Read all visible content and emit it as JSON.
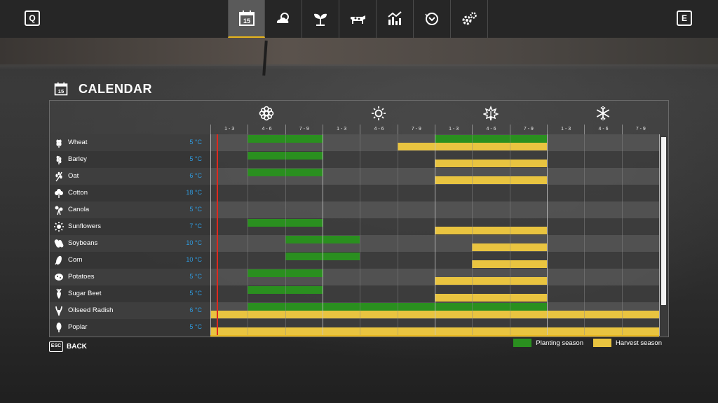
{
  "top_keys": {
    "left": "Q",
    "right": "E"
  },
  "tabs": [
    {
      "icon": "calendar-icon",
      "label": "15",
      "active": true
    },
    {
      "icon": "weather-icon",
      "active": false
    },
    {
      "icon": "seedling-icon",
      "active": false
    },
    {
      "icon": "cow-icon",
      "active": false
    },
    {
      "icon": "statistics-icon",
      "active": false
    },
    {
      "icon": "finances-icon",
      "active": false
    },
    {
      "icon": "settings-icon",
      "active": false
    }
  ],
  "page": {
    "title": "CALENDAR",
    "title_icon_label": "15"
  },
  "seasons": [
    {
      "icon": "spring-flower-icon"
    },
    {
      "icon": "summer-sun-icon"
    },
    {
      "icon": "autumn-leaf-icon"
    },
    {
      "icon": "winter-snowflake-icon"
    }
  ],
  "periods": [
    "1 - 3",
    "4 - 6",
    "7 - 9",
    "1 - 3",
    "4 - 6",
    "7 - 9",
    "1 - 3",
    "4 - 6",
    "7 - 9",
    "1 - 3",
    "4 - 6",
    "7 - 9"
  ],
  "crops": [
    {
      "name": "Wheat",
      "temp": "5 °C",
      "icon": "wheat-icon",
      "planting": [
        [
          2,
          3
        ],
        [
          7,
          9
        ]
      ],
      "harvest": [
        [
          6,
          9
        ]
      ]
    },
    {
      "name": "Barley",
      "temp": "5 °C",
      "icon": "barley-icon",
      "planting": [
        [
          2,
          3
        ]
      ],
      "harvest": [
        [
          7,
          9
        ]
      ]
    },
    {
      "name": "Oat",
      "temp": "6 °C",
      "icon": "oat-icon",
      "planting": [
        [
          2,
          3
        ]
      ],
      "harvest": [
        [
          7,
          9
        ]
      ]
    },
    {
      "name": "Cotton",
      "temp": "18 °C",
      "icon": "cotton-icon",
      "planting": [],
      "harvest": []
    },
    {
      "name": "Canola",
      "temp": "5 °C",
      "icon": "canola-icon",
      "planting": [],
      "harvest": []
    },
    {
      "name": "Sunflowers",
      "temp": "7 °C",
      "icon": "sunflower-icon",
      "planting": [
        [
          2,
          3
        ]
      ],
      "harvest": [
        [
          7,
          9
        ]
      ]
    },
    {
      "name": "Soybeans",
      "temp": "10 °C",
      "icon": "soybean-icon",
      "planting": [
        [
          3,
          4
        ]
      ],
      "harvest": [
        [
          8,
          9
        ]
      ]
    },
    {
      "name": "Corn",
      "temp": "10 °C",
      "icon": "corn-icon",
      "planting": [
        [
          3,
          4
        ]
      ],
      "harvest": [
        [
          8,
          9
        ]
      ]
    },
    {
      "name": "Potatoes",
      "temp": "5 °C",
      "icon": "potato-icon",
      "planting": [
        [
          2,
          3
        ]
      ],
      "harvest": [
        [
          7,
          9
        ]
      ]
    },
    {
      "name": "Sugar Beet",
      "temp": "5 °C",
      "icon": "sugar-beet-icon",
      "planting": [
        [
          2,
          3
        ]
      ],
      "harvest": [
        [
          7,
          9
        ]
      ]
    },
    {
      "name": "Oilseed Radish",
      "temp": "6 °C",
      "icon": "oilseed-radish-icon",
      "planting": [
        [
          2,
          9
        ]
      ],
      "harvest": [
        [
          1,
          12
        ]
      ]
    },
    {
      "name": "Poplar",
      "temp": "5 °C",
      "icon": "poplar-icon",
      "planting": [],
      "harvest": [
        [
          1,
          12
        ]
      ]
    }
  ],
  "today_period_fraction": 0.15,
  "footer": {
    "esc_key": "ESC",
    "back_label": "BACK"
  },
  "legend": {
    "planting": "Planting season",
    "harvest": "Harvest season"
  },
  "colors": {
    "planting": "#2a8f1f",
    "harvest": "#e9c440",
    "accent": "#e8b61c",
    "today": "#e0281e",
    "temp": "#2f9be0"
  }
}
